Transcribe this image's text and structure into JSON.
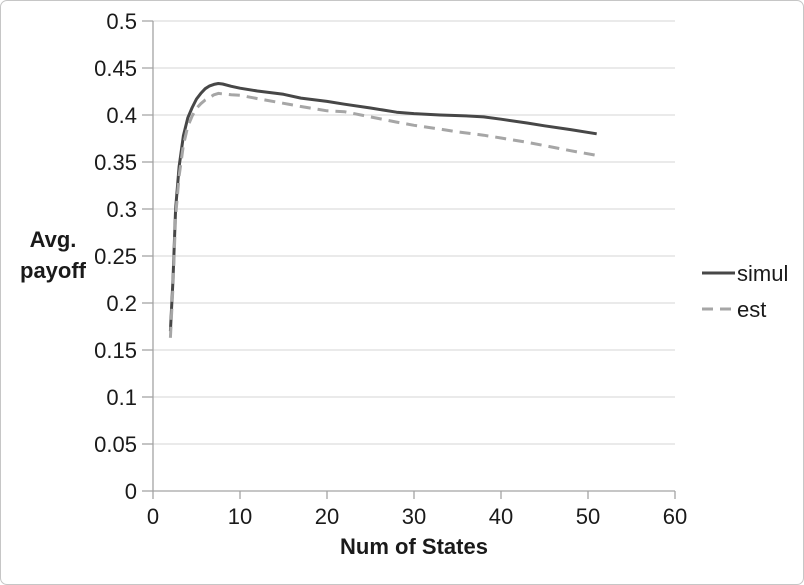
{
  "chart_data": {
    "type": "line",
    "title": "",
    "xlabel": "Num of States",
    "ylabel": "Avg. payoff",
    "ylabel_lines": [
      "Avg.",
      "payoff"
    ],
    "xlim": [
      0,
      60
    ],
    "ylim": [
      0,
      0.5
    ],
    "x_ticks": [
      0,
      10,
      20,
      30,
      40,
      50,
      60
    ],
    "x_tick_labels": [
      "0",
      "10",
      "20",
      "30",
      "40",
      "50",
      "60"
    ],
    "y_ticks": [
      0,
      0.05,
      0.1,
      0.15,
      0.2,
      0.25,
      0.3,
      0.35,
      0.4,
      0.45,
      0.5
    ],
    "y_tick_labels": [
      "0",
      "0.05",
      "0.1",
      "0.15",
      "0.2",
      "0.25",
      "0.3",
      "0.35",
      "0.4",
      "0.45",
      "0.5"
    ],
    "grid": "horizontal",
    "legend_position": "right",
    "series": [
      {
        "name": "simul",
        "style": "solid",
        "color": "#474747",
        "points": [
          [
            2,
            0.17
          ],
          [
            2.3,
            0.225
          ],
          [
            2.6,
            0.3
          ],
          [
            3,
            0.345
          ],
          [
            3.5,
            0.378
          ],
          [
            4,
            0.397
          ],
          [
            4.5,
            0.408
          ],
          [
            5,
            0.417
          ],
          [
            5.5,
            0.423
          ],
          [
            6,
            0.428
          ],
          [
            6.5,
            0.431
          ],
          [
            7,
            0.4325
          ],
          [
            7.5,
            0.4335
          ],
          [
            8,
            0.433
          ],
          [
            9,
            0.4305
          ],
          [
            10,
            0.4285
          ],
          [
            12,
            0.4255
          ],
          [
            15,
            0.422
          ],
          [
            17,
            0.418
          ],
          [
            20,
            0.4145
          ],
          [
            22,
            0.4115
          ],
          [
            25,
            0.4075
          ],
          [
            28,
            0.403
          ],
          [
            30,
            0.4015
          ],
          [
            33,
            0.4
          ],
          [
            36,
            0.399
          ],
          [
            38,
            0.398
          ],
          [
            40,
            0.3955
          ],
          [
            43,
            0.3915
          ],
          [
            45,
            0.3885
          ],
          [
            48,
            0.3845
          ],
          [
            51,
            0.38
          ]
        ]
      },
      {
        "name": "est",
        "style": "dashed",
        "color": "#a6a6a6",
        "points": [
          [
            2,
            0.163
          ],
          [
            2.3,
            0.218
          ],
          [
            2.6,
            0.292
          ],
          [
            3,
            0.335
          ],
          [
            3.5,
            0.368
          ],
          [
            4,
            0.388
          ],
          [
            4.5,
            0.399
          ],
          [
            5,
            0.407
          ],
          [
            5.5,
            0.412
          ],
          [
            6,
            0.416
          ],
          [
            6.5,
            0.4185
          ],
          [
            7,
            0.4215
          ],
          [
            7.5,
            0.423
          ],
          [
            8,
            0.4225
          ],
          [
            9,
            0.4215
          ],
          [
            10,
            0.421
          ],
          [
            12,
            0.4175
          ],
          [
            15,
            0.4125
          ],
          [
            17,
            0.409
          ],
          [
            20,
            0.4045
          ],
          [
            22,
            0.4035
          ],
          [
            25,
            0.398
          ],
          [
            28,
            0.3925
          ],
          [
            30,
            0.389
          ],
          [
            33,
            0.385
          ],
          [
            35,
            0.382
          ],
          [
            38,
            0.3785
          ],
          [
            40,
            0.3755
          ],
          [
            43,
            0.371
          ],
          [
            45,
            0.3675
          ],
          [
            48,
            0.362
          ],
          [
            51,
            0.357
          ]
        ]
      }
    ],
    "colors": {
      "grid": "#d4d4d4",
      "axis": "#a3a3a3",
      "text": "#1a1a1a",
      "background": "#ffffff",
      "border": "#c6c6c6"
    }
  }
}
